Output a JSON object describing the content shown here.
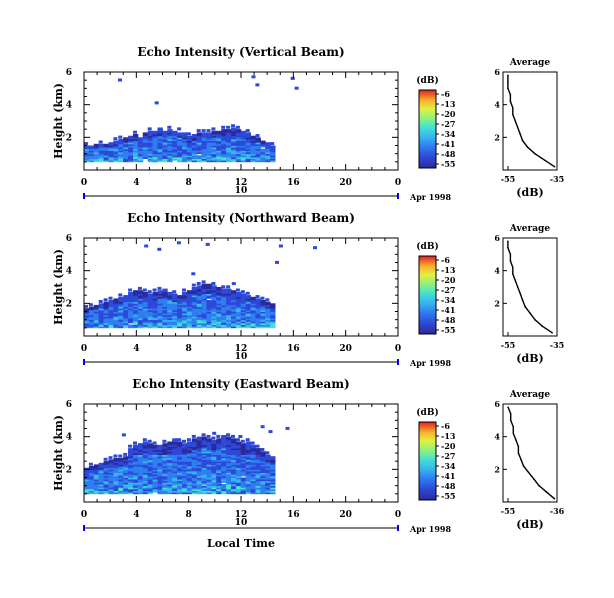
{
  "chart_data": [
    {
      "type": "heatmap",
      "title": "Echo Intensity (Vertical Beam)",
      "ylabel": "Height (km)",
      "ylim": [
        0,
        6
      ],
      "yticks": [
        "6",
        "4",
        "2"
      ],
      "xlim": [
        0,
        24
      ],
      "xticks": [
        "0",
        "4",
        "8",
        "12",
        "16",
        "20",
        "0"
      ],
      "day_label": "10",
      "date_label": "Apr 1998",
      "colorbar": {
        "unit": "(dB)",
        "labels": [
          "-6",
          "-13",
          "-20",
          "-27",
          "-34",
          "-41",
          "-48",
          "-55"
        ]
      },
      "echo_top_km": [
        1.4,
        1.4,
        1.5,
        1.5,
        1.6,
        1.6,
        1.7,
        1.8,
        1.9,
        2.0,
        2.1,
        2.1,
        2.2,
        2.3,
        2.3,
        2.5,
        2.3,
        2.4,
        2.4,
        2.3,
        2.2,
        2.0,
        2.1,
        2.2,
        2.2,
        2.2,
        2.3,
        2.3,
        2.4,
        2.4,
        2.5,
        2.4,
        2.3,
        2.2,
        2.0,
        1.9,
        1.7,
        1.6,
        1.4,
        0,
        0,
        0,
        0,
        0,
        0,
        0,
        0,
        0
      ],
      "average_profile": {
        "title": "Average",
        "xlabel": "(dB)",
        "xticks": [
          "-55",
          "-35"
        ],
        "yticks": [
          "6",
          "4",
          "2"
        ],
        "height_km": [
          0.2,
          0.6,
          1.0,
          1.4,
          1.8,
          2.2,
          2.6,
          3.0,
          3.4,
          3.8,
          4.2,
          4.6,
          5.0,
          5.4,
          5.8
        ],
        "dB": [
          -36,
          -40,
          -44,
          -47,
          -49,
          -50,
          -51,
          -52,
          -53,
          -53,
          -54,
          -54,
          -55,
          -55,
          -55
        ]
      },
      "scatter_echoes": [
        [
          2.6,
          5.6
        ],
        [
          5.4,
          4.2
        ],
        [
          12.8,
          5.8
        ],
        [
          13.1,
          5.3
        ],
        [
          15.8,
          5.7
        ],
        [
          16.1,
          5.1
        ]
      ]
    },
    {
      "type": "heatmap",
      "title": "Echo Intensity (Northward Beam)",
      "ylabel": "Height (km)",
      "ylim": [
        0,
        6
      ],
      "yticks": [
        "6",
        "4",
        "2"
      ],
      "xlim": [
        0,
        24
      ],
      "xticks": [
        "0",
        "4",
        "8",
        "12",
        "16",
        "20",
        "0"
      ],
      "day_label": "10",
      "date_label": "Apr 1998",
      "colorbar": {
        "unit": "(dB)",
        "labels": [
          "-6",
          "-13",
          "-20",
          "-27",
          "-34",
          "-41",
          "-48",
          "-55"
        ]
      },
      "echo_top_km": [
        1.6,
        1.7,
        1.8,
        1.9,
        2.0,
        2.1,
        2.2,
        2.3,
        2.4,
        2.6,
        2.7,
        2.7,
        2.6,
        2.5,
        2.6,
        2.7,
        2.8,
        2.6,
        2.5,
        2.4,
        2.6,
        2.8,
        2.9,
        3.0,
        3.1,
        3.1,
        3.0,
        2.9,
        2.8,
        2.8,
        2.7,
        2.6,
        2.5,
        2.4,
        2.3,
        2.2,
        2.1,
        2.0,
        1.9,
        0,
        0,
        0,
        0,
        0,
        0,
        0,
        0,
        0
      ],
      "average_profile": {
        "title": "Average",
        "xlabel": "(dB)",
        "xticks": [
          "-55",
          "-35"
        ],
        "yticks": [
          "6",
          "4",
          "2"
        ],
        "height_km": [
          0.2,
          0.6,
          1.0,
          1.4,
          1.8,
          2.2,
          2.6,
          3.0,
          3.4,
          3.8,
          4.2,
          4.6,
          5.0,
          5.4,
          5.8
        ],
        "dB": [
          -37,
          -41,
          -44,
          -46,
          -48,
          -49,
          -50,
          -51,
          -52,
          -53,
          -53,
          -54,
          -54,
          -55,
          -55
        ]
      },
      "scatter_echoes": [
        [
          4.6,
          5.6
        ],
        [
          5.6,
          5.4
        ],
        [
          7.1,
          5.8
        ],
        [
          9.3,
          5.7
        ],
        [
          14.9,
          5.6
        ],
        [
          17.5,
          5.5
        ],
        [
          8.2,
          3.9
        ],
        [
          11.3,
          3.3
        ],
        [
          14.6,
          4.6
        ]
      ]
    },
    {
      "type": "heatmap",
      "title": "Echo Intensity (Eastward Beam)",
      "ylabel": "Height (km)",
      "ylim": [
        0,
        6
      ],
      "yticks": [
        "6",
        "4",
        "2"
      ],
      "xlim": [
        0,
        24
      ],
      "xticks": [
        "0",
        "4",
        "8",
        "12",
        "16",
        "20",
        "0"
      ],
      "day_label": "10",
      "date_label": "Apr 1998",
      "xlabel": "Local Time",
      "colorbar": {
        "unit": "(dB)",
        "labels": [
          "-6",
          "-13",
          "-20",
          "-27",
          "-34",
          "-41",
          "-48",
          "-55"
        ]
      },
      "echo_top_km": [
        2.0,
        2.1,
        2.2,
        2.3,
        2.4,
        2.5,
        2.6,
        2.6,
        2.7,
        3.2,
        3.4,
        3.5,
        3.6,
        3.5,
        3.4,
        3.4,
        3.5,
        3.6,
        3.8,
        3.6,
        3.5,
        3.6,
        3.8,
        4.0,
        3.9,
        3.8,
        3.7,
        3.8,
        4.0,
        3.9,
        3.8,
        3.6,
        3.5,
        3.6,
        3.4,
        3.2,
        3.0,
        2.8,
        2.7,
        0,
        0,
        0,
        0,
        0,
        0,
        0,
        0,
        0
      ],
      "average_profile": {
        "title": "Average",
        "xlabel": "(dB)",
        "xticks": [
          "-55",
          "-36"
        ],
        "yticks": [
          "6",
          "4",
          "2"
        ],
        "height_km": [
          0.2,
          0.6,
          1.0,
          1.4,
          1.8,
          2.2,
          2.6,
          3.0,
          3.4,
          3.8,
          4.2,
          4.6,
          5.0,
          5.4,
          5.8
        ],
        "dB": [
          -37,
          -40,
          -43,
          -45,
          -47,
          -49,
          -50,
          -51,
          -51,
          -52,
          -53,
          -53,
          -54,
          -54,
          -55
        ]
      },
      "scatter_echoes": [
        [
          2.9,
          4.2
        ],
        [
          9.8,
          4.3
        ],
        [
          11.8,
          4.1
        ],
        [
          14.1,
          4.4
        ],
        [
          15.4,
          4.6
        ],
        [
          13.5,
          4.7
        ]
      ]
    }
  ],
  "common": {
    "xlabel": "Local Time"
  },
  "colormap": [
    "#2b2a9a",
    "#2c49d9",
    "#2f7ef0",
    "#36b7ef",
    "#45e0d0",
    "#8ef27c",
    "#e6ef3f",
    "#f7b02c",
    "#f25a25",
    "#e0211f"
  ]
}
